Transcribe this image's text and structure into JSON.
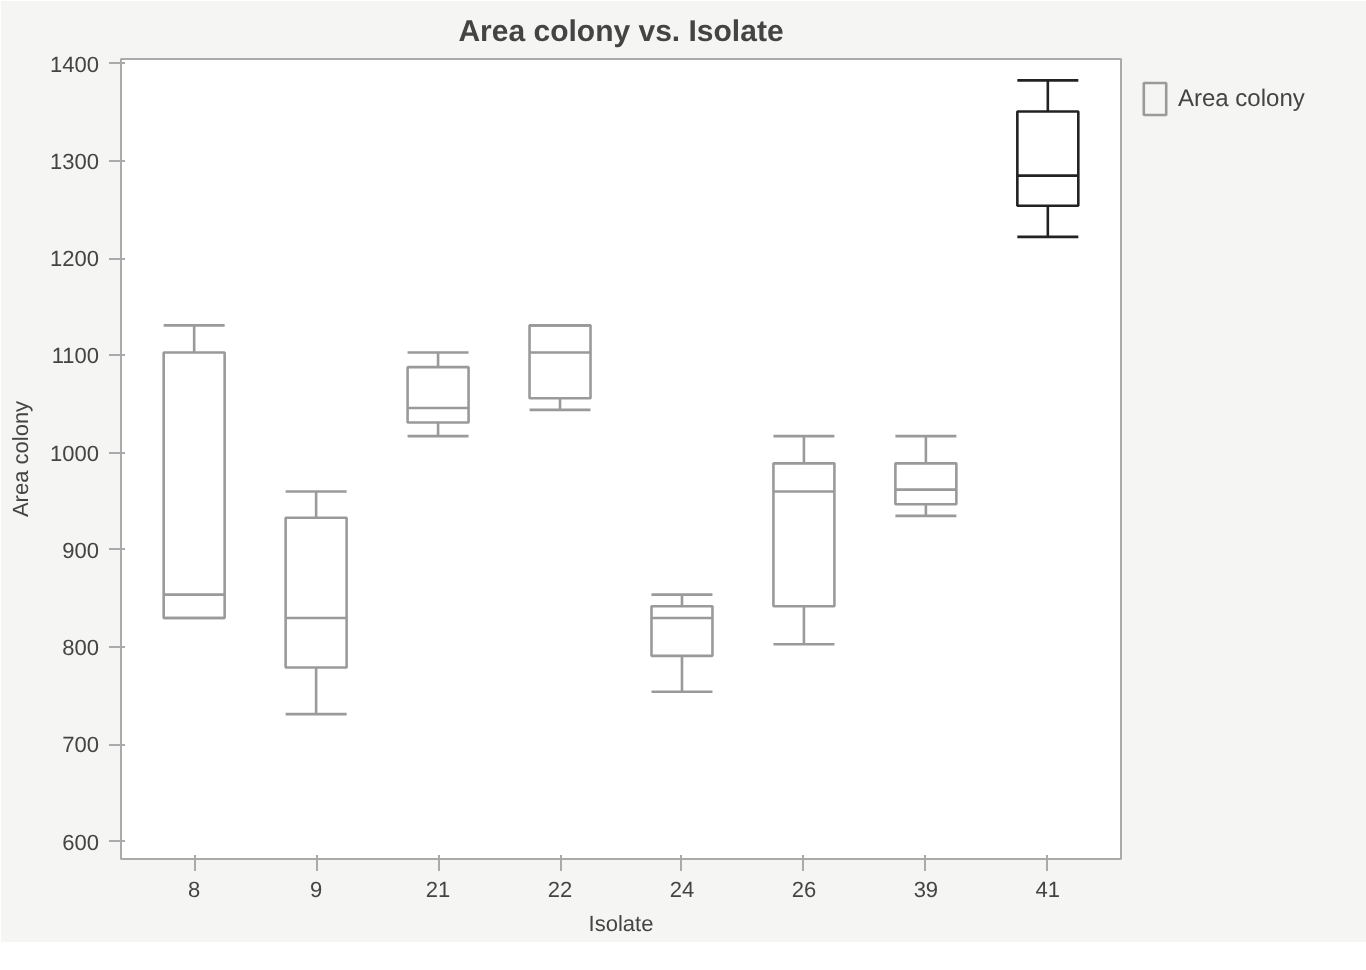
{
  "chart_data": {
    "type": "box",
    "title": "Area colony vs. Isolate",
    "xlabel": "Isolate",
    "ylabel": "Area colony",
    "categories": [
      "8",
      "9",
      "21",
      "22",
      "24",
      "26",
      "39",
      "41"
    ],
    "series": [
      {
        "name": "Area colony",
        "color": "#9a9a9a",
        "colors": [
          "#9a9a9a",
          "#9a9a9a",
          "#9a9a9a",
          "#9a9a9a",
          "#9a9a9a",
          "#9a9a9a",
          "#9a9a9a",
          "#222222"
        ],
        "boxes": [
          {
            "low": 830,
            "q1": 830,
            "median": 854,
            "q3": 1103,
            "high": 1131
          },
          {
            "low": 731,
            "q1": 779,
            "median": 830,
            "q3": 933,
            "high": 960
          },
          {
            "low": 1017,
            "q1": 1031,
            "median": 1046,
            "q3": 1088,
            "high": 1103
          },
          {
            "low": 1044,
            "q1": 1056,
            "median": 1103,
            "q3": 1131,
            "high": 1131
          },
          {
            "low": 754,
            "q1": 791,
            "median": 830,
            "q3": 842,
            "high": 854
          },
          {
            "low": 803,
            "q1": 842,
            "median": 960,
            "q3": 989,
            "high": 1017
          },
          {
            "low": 935,
            "q1": 947,
            "median": 962,
            "q3": 989,
            "high": 1017
          },
          {
            "low": 1222,
            "q1": 1254,
            "median": 1285,
            "q3": 1351,
            "high": 1383
          }
        ]
      }
    ],
    "ylim": [
      582,
      1405
    ],
    "yticks": [
      600,
      700,
      800,
      900,
      1000,
      1100,
      1200,
      1300,
      1400
    ],
    "grid": false,
    "legend": "top right"
  }
}
